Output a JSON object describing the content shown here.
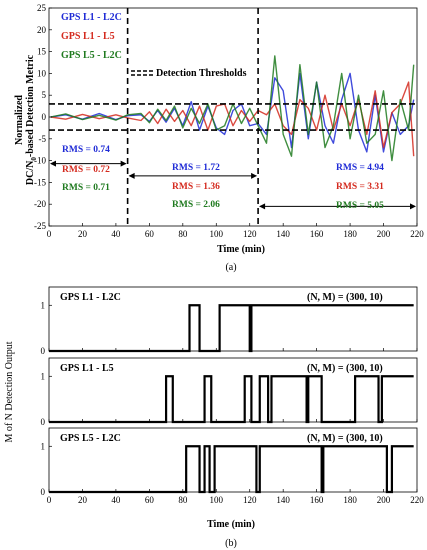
{
  "colors": {
    "blue": "#1f2bd6",
    "red": "#d42a1e",
    "green": "#1f7a1f",
    "black": "#000000",
    "axis": "#000000"
  },
  "chart_data": [
    {
      "type": "line",
      "panel_label": "(a)",
      "xlabel": "Time (min)",
      "ylabel_line1": "Normalized",
      "ylabel_line2_main": "DC/N",
      "ylabel_line2_sub": "0",
      "ylabel_line2_rest": "-based Detection Metric",
      "xlim": [
        0,
        220
      ],
      "ylim": [
        -25,
        25
      ],
      "xticks": [
        0,
        20,
        40,
        60,
        80,
        100,
        120,
        140,
        160,
        180,
        200,
        220
      ],
      "yticks": [
        -25,
        -20,
        -15,
        -10,
        -5,
        0,
        5,
        10,
        15,
        20,
        25
      ],
      "thresholds": [
        3,
        -3
      ],
      "segment_boundaries": [
        47,
        125
      ],
      "legend": [
        {
          "label": "GPS L1 - L2C",
          "color": "blue"
        },
        {
          "label": "GPS L1 - L5",
          "color": "red"
        },
        {
          "label": "GPS L5 - L2C",
          "color": "green"
        },
        {
          "label": "Detection Thresholds",
          "color": "black",
          "dashed": true
        }
      ],
      "series": [
        {
          "name": "GPS L1 - L2C",
          "color": "blue",
          "x": [
            1,
            10,
            20,
            30,
            40,
            47,
            55,
            60,
            65,
            70,
            75,
            80,
            85,
            90,
            95,
            100,
            105,
            110,
            115,
            120,
            125,
            130,
            135,
            140,
            145,
            150,
            155,
            160,
            165,
            170,
            175,
            180,
            185,
            190,
            195,
            200,
            205,
            210,
            215,
            218
          ],
          "y": [
            0,
            0.5,
            -0.5,
            0.8,
            -0.6,
            0.3,
            0.5,
            -1,
            1.5,
            -1.2,
            2,
            -2,
            3.5,
            -3,
            2.5,
            -2.5,
            -4,
            1.5,
            3,
            -2,
            -1.5,
            -4,
            9,
            6,
            -7,
            10,
            -5,
            8,
            -2,
            -6,
            4,
            10,
            -3,
            -8,
            5,
            -8,
            1,
            -4,
            -2,
            4
          ],
          "rms": [
            {
              "label": "RMS = 0.74",
              "segment": 1
            },
            {
              "label": "RMS = 1.72",
              "segment": 2
            },
            {
              "label": "RMS = 4.94",
              "segment": 3
            }
          ]
        },
        {
          "name": "GPS L1 - L5",
          "color": "red",
          "x": [
            1,
            10,
            20,
            30,
            40,
            47,
            55,
            60,
            65,
            70,
            75,
            80,
            85,
            90,
            95,
            100,
            105,
            110,
            115,
            120,
            125,
            130,
            135,
            140,
            145,
            150,
            155,
            160,
            165,
            170,
            175,
            180,
            185,
            190,
            195,
            200,
            205,
            210,
            215,
            218
          ],
          "y": [
            0,
            -0.5,
            0.6,
            -0.4,
            0.5,
            -0.2,
            -0.8,
            1.2,
            -1.5,
            1.8,
            -1,
            1.5,
            -2,
            2.5,
            -3,
            2.5,
            3,
            -2,
            1.5,
            -1,
            1.5,
            0.5,
            3,
            -2,
            -4,
            4,
            2,
            -3,
            5,
            -3,
            3,
            -2,
            4,
            -4,
            6,
            -7,
            1,
            3,
            8,
            -9
          ],
          "rms": [
            {
              "label": "RMS = 0.72",
              "segment": 1
            },
            {
              "label": "RMS = 1.36",
              "segment": 2
            },
            {
              "label": "RMS = 3.31",
              "segment": 3
            }
          ]
        },
        {
          "name": "GPS L5 - L2C",
          "color": "green",
          "x": [
            1,
            10,
            20,
            30,
            40,
            47,
            55,
            60,
            65,
            70,
            75,
            80,
            85,
            90,
            95,
            100,
            105,
            110,
            115,
            120,
            125,
            130,
            135,
            140,
            145,
            150,
            155,
            160,
            165,
            170,
            175,
            180,
            185,
            190,
            195,
            200,
            205,
            210,
            215,
            218
          ],
          "y": [
            0,
            0.7,
            -0.6,
            0.4,
            -0.7,
            0.5,
            0.8,
            -1.3,
            1.8,
            -0.8,
            2.5,
            -2.5,
            2,
            -1.5,
            3,
            -3,
            -2,
            3,
            -1.5,
            2,
            -2,
            -6,
            14,
            -4,
            -9,
            12,
            -4,
            8,
            -7,
            -2,
            10,
            -5,
            5,
            -6,
            -4,
            6,
            -10,
            4,
            -3,
            12
          ],
          "rms": [
            {
              "label": "RMS = 0.71",
              "segment": 1
            },
            {
              "label": "RMS = 2.06",
              "segment": 2
            },
            {
              "label": "RMS = 5.05",
              "segment": 3
            }
          ]
        }
      ]
    },
    {
      "type": "line",
      "panel_label": "(b)",
      "xlabel": "Time (min)",
      "ylabel": "M of N Detection Output",
      "xlim": [
        0,
        220
      ],
      "ylim": [
        0,
        1.4
      ],
      "xticks": [
        0,
        20,
        40,
        60,
        80,
        100,
        120,
        140,
        160,
        180,
        200,
        220
      ],
      "yticks": [
        0,
        1
      ],
      "subplots": [
        {
          "name": "GPS L1 - L2C",
          "param_label": "(N, M) = (300, 10)",
          "steps": [
            [
              0,
              0
            ],
            [
              84,
              1
            ],
            [
              90,
              0
            ],
            [
              102,
              1
            ],
            [
              120,
              0
            ],
            [
              121,
              1
            ],
            [
              218,
              1
            ]
          ]
        },
        {
          "name": "GPS L1 - L5",
          "param_label": "(N, M) = (300, 10)",
          "steps": [
            [
              0,
              0
            ],
            [
              70,
              1
            ],
            [
              74,
              0
            ],
            [
              93,
              1
            ],
            [
              97,
              0
            ],
            [
              117,
              1
            ],
            [
              121,
              0
            ],
            [
              126,
              1
            ],
            [
              131,
              0
            ],
            [
              133,
              1
            ],
            [
              154,
              0
            ],
            [
              155,
              1
            ],
            [
              163,
              0
            ],
            [
              183,
              1
            ],
            [
              197,
              0
            ],
            [
              199,
              1
            ],
            [
              218,
              1
            ]
          ]
        },
        {
          "name": "GPS L5 - L2C",
          "param_label": "(N, M) = (300, 10)",
          "steps": [
            [
              0,
              0
            ],
            [
              82,
              1
            ],
            [
              90,
              0
            ],
            [
              93,
              1
            ],
            [
              96,
              0
            ],
            [
              99,
              1
            ],
            [
              124,
              0
            ],
            [
              126,
              1
            ],
            [
              163,
              0
            ],
            [
              164,
              1
            ],
            [
              202,
              0
            ],
            [
              205,
              1
            ],
            [
              218,
              1
            ]
          ]
        }
      ]
    }
  ]
}
